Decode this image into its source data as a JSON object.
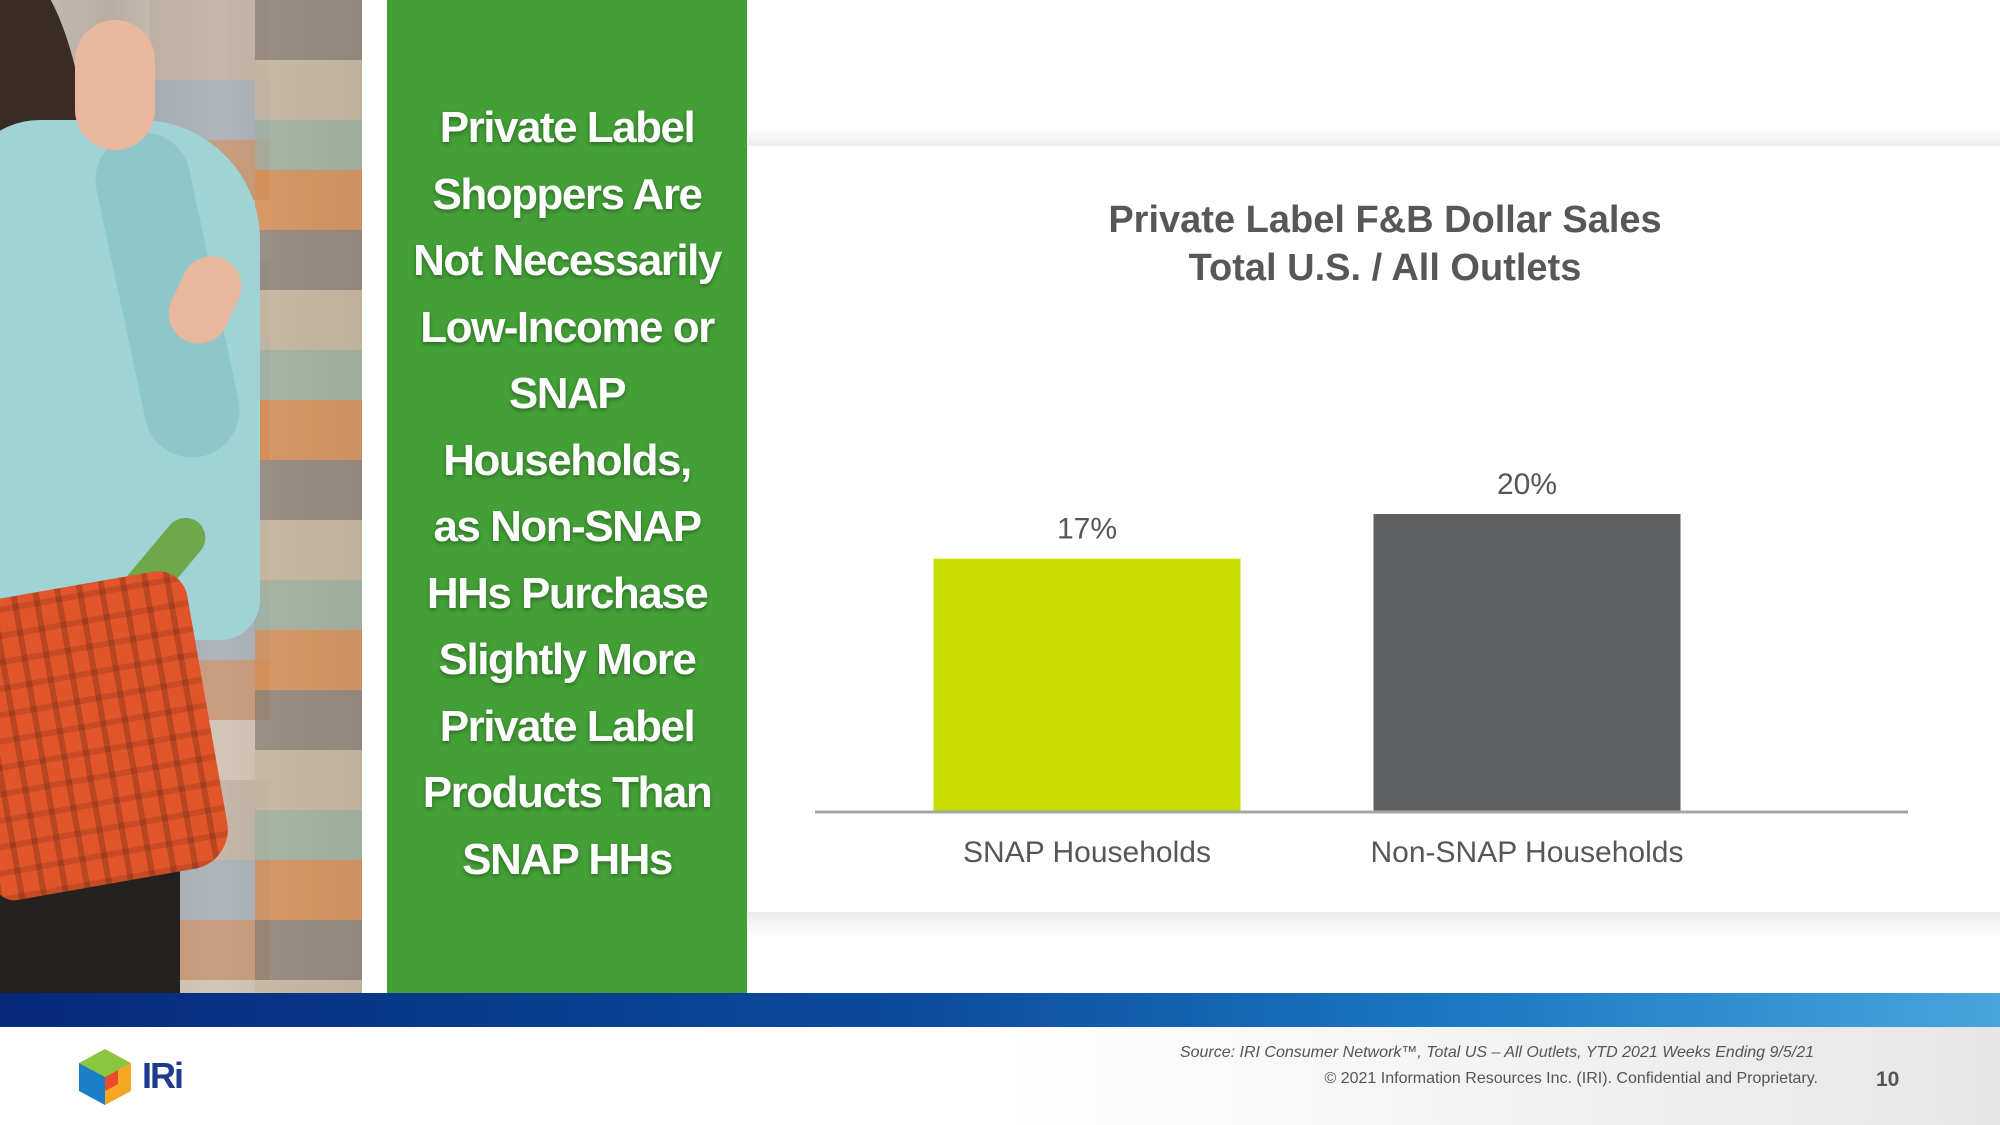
{
  "headline": [
    "Private Label",
    "Shoppers Are",
    "Not Necessarily",
    "Low-Income or",
    "SNAP",
    "Households,",
    "as Non-SNAP",
    "HHs Purchase",
    "Slightly More",
    "Private Label",
    "Products Than",
    "SNAP HHs"
  ],
  "chart_data": {
    "type": "bar",
    "title": "Private Label F&B Dollar Sales",
    "subtitle": "Total U.S. / All Outlets",
    "categories": [
      "SNAP Households",
      "Non-SNAP Households"
    ],
    "values": [
      17,
      20
    ],
    "data_labels": [
      "17%",
      "20%"
    ],
    "colors": [
      "#c8dc00",
      "#5f6062"
    ],
    "ylim": [
      0,
      22
    ],
    "xlabel": "",
    "ylabel": "",
    "grid": false
  },
  "footer": {
    "logo_text": "IRi",
    "source": "Source: IRI Consumer Network™, Total US – All Outlets, YTD 2021 Weeks Ending 9/5/21",
    "copyright": "© 2021 Information Resources Inc. (IRI). Confidential and Proprietary.",
    "page_number": "10"
  }
}
